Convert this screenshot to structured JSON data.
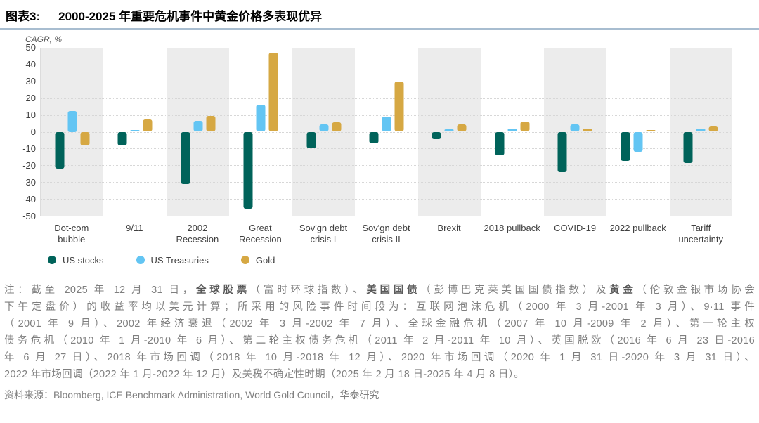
{
  "header": {
    "figure_label": "图表3:",
    "title": "2000-2025 年重要危机事件中黄金价格多表现优异"
  },
  "chart_data": {
    "type": "bar",
    "title": "2000-2025 年重要危机事件中黄金价格多表现优异",
    "ylabel": "CAGR, %",
    "xlabel": "",
    "ylim": [
      -50,
      50
    ],
    "ytick_step": 10,
    "grid": "dotted horizontal",
    "legend_position": "bottom-left",
    "band_fill_alternate": true,
    "categories": [
      "Dot-com bubble",
      "9/11",
      "2002 Recession",
      "Great Recession",
      "Sov'gn debt crisis I",
      "Sov'gn debt crisis II",
      "Brexit",
      "2018 pullback",
      "COVID-19",
      "2022 pullback",
      "Tariff uncertainty"
    ],
    "series": [
      {
        "name": "US stocks",
        "color": "#00635a",
        "values": [
          -22,
          -8,
          -31,
          -46,
          -10,
          -7,
          -4.5,
          -14,
          -24,
          -17.5,
          -18.5
        ]
      },
      {
        "name": "US Treasuries",
        "color": "#63c5f3",
        "values": [
          12.5,
          1,
          6.5,
          16,
          4.5,
          9,
          1.5,
          2,
          4.5,
          -12,
          2
        ]
      },
      {
        "name": "Gold",
        "color": "#d6a843",
        "values": [
          -8,
          7.5,
          9.5,
          47,
          5.5,
          30,
          4.5,
          6,
          2,
          1,
          3
        ]
      }
    ]
  },
  "colors": {
    "divider": "#a8bdd0",
    "band_gray": "#ececec",
    "gridline": "#d7d7d7",
    "axis_line": "#b3b3b3",
    "tick_text": "#404040",
    "note_text": "#7f7f7f"
  },
  "notes": {
    "lines": [
      [
        {
          "t": "注：截至 2025 年 12 月 31 日，"
        },
        {
          "t": "全球股票",
          "b": true
        },
        {
          "t": "（富时环球指数）、"
        },
        {
          "t": "美国国债",
          "b": true
        },
        {
          "t": "（彭博巴克莱美国国债指数）及"
        },
        {
          "t": "黄金",
          "b": true
        },
        {
          "t": "（伦敦金银市场协会"
        }
      ],
      [
        {
          "t": "下午定盘价）的收益率均以美元计算；所采用的风险事件时间段为：互联网泡沫危机（2000 年 3 月-2001 年 3 月）、9·11 事件"
        }
      ],
      [
        {
          "t": "（2001 年 9 月）、2002 年经济衰退（2002 年 3 月-2002 年 7 月）、全球金融危机（2007 年 10 月-2009 年 2 月）、第一轮主权"
        }
      ],
      [
        {
          "t": "债务危机（2010 年 1 月-2010 年 6 月）、第二轮主权债务危机（2011 年 2 月-2011 年 10 月）、英国脱欧（2016 年 6 月 23 日-2016"
        }
      ],
      [
        {
          "t": "年 6 月 27 日）、2018 年市场回调（2018 年 10 月-2018 年 12 月）、2020 年市场回调（2020 年 1 月 31 日-2020 年 3 月 31 日）、"
        }
      ],
      [
        {
          "t": "2022 年市场回调（2022 年 1 月-2022 年 12 月）及关税不确定性时期（2025 年 2 月 18 日-2025 年 4 月 8 日）。"
        }
      ]
    ]
  },
  "footer": {
    "source": "资料来源：Bloomberg, ICE Benchmark Administration, World Gold Council，华泰研究"
  }
}
